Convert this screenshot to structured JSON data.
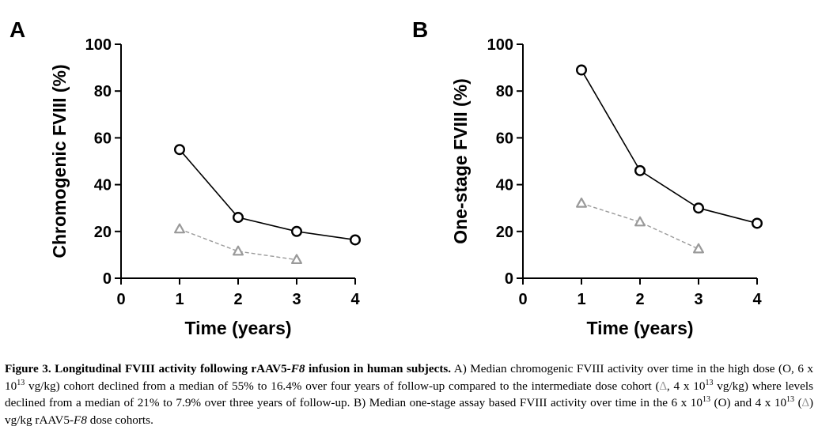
{
  "colors": {
    "high_dose": "#000000",
    "intermediate_dose": "#9a9a9a"
  },
  "chart_data": [
    {
      "type": "line",
      "panel": "A",
      "xlabel": "Time (years)",
      "ylabel": "Chromogenic FVIII (%)",
      "xlim": [
        0,
        4
      ],
      "ylim": [
        0,
        100
      ],
      "xticks": [
        "0",
        "1",
        "2",
        "3",
        "4"
      ],
      "yticks": [
        "0",
        "20",
        "40",
        "60",
        "80",
        "100"
      ],
      "grid": false,
      "series": [
        {
          "marker": "circle",
          "line": "solid",
          "x": [
            1,
            2,
            3,
            4
          ],
          "values": [
            55,
            26,
            20,
            16.4
          ]
        },
        {
          "marker": "triangle",
          "line": "dashed",
          "x": [
            1,
            2,
            3
          ],
          "values": [
            21,
            11.5,
            7.9
          ]
        }
      ]
    },
    {
      "type": "line",
      "panel": "B",
      "xlabel": "Time (years)",
      "ylabel": "One-stage FVIII (%)",
      "xlim": [
        0,
        4
      ],
      "ylim": [
        0,
        100
      ],
      "xticks": [
        "0",
        "1",
        "2",
        "3",
        "4"
      ],
      "yticks": [
        "0",
        "20",
        "40",
        "60",
        "80",
        "100"
      ],
      "grid": false,
      "series": [
        {
          "marker": "circle",
          "line": "solid",
          "x": [
            1,
            2,
            3,
            4
          ],
          "values": [
            89,
            46,
            30,
            23.5
          ]
        },
        {
          "marker": "triangle",
          "line": "dashed",
          "x": [
            1,
            2,
            3
          ],
          "values": [
            32,
            24,
            12.5
          ]
        }
      ]
    }
  ],
  "caption": {
    "title_part1": "Figure 3. Longitudinal FVIII activity following rAAV5-",
    "title_italic": "F8",
    "title_part2": " infusion in human subjects.",
    "a_part1": " A) Median chromogenic FVIII activity over time in the high dose (O, 6 x 10",
    "sup_13_a": "13",
    "a_part2": " vg/kg) cohort declined from a median of 55% to 16.4% over four years of follow-up compared to the intermediate dose cohort (",
    "triangle_glyph": "∆",
    "a_part3": ", 4 x 10",
    "sup_13_b": "13",
    "a_part4": " vg/kg) where levels declined from a median of 21% to 7.9% over three years of follow-up. B) Median one-stage assay based FVIII activity over time in the 6 x 10",
    "sup_13_c": "13",
    "b_part2": " (O) and 4 x 10",
    "sup_13_d": "13",
    "b_part3": " (",
    "b_part4": ") vg/kg rAAV5-",
    "b_italic": "F8",
    "b_part5": " dose cohorts."
  }
}
